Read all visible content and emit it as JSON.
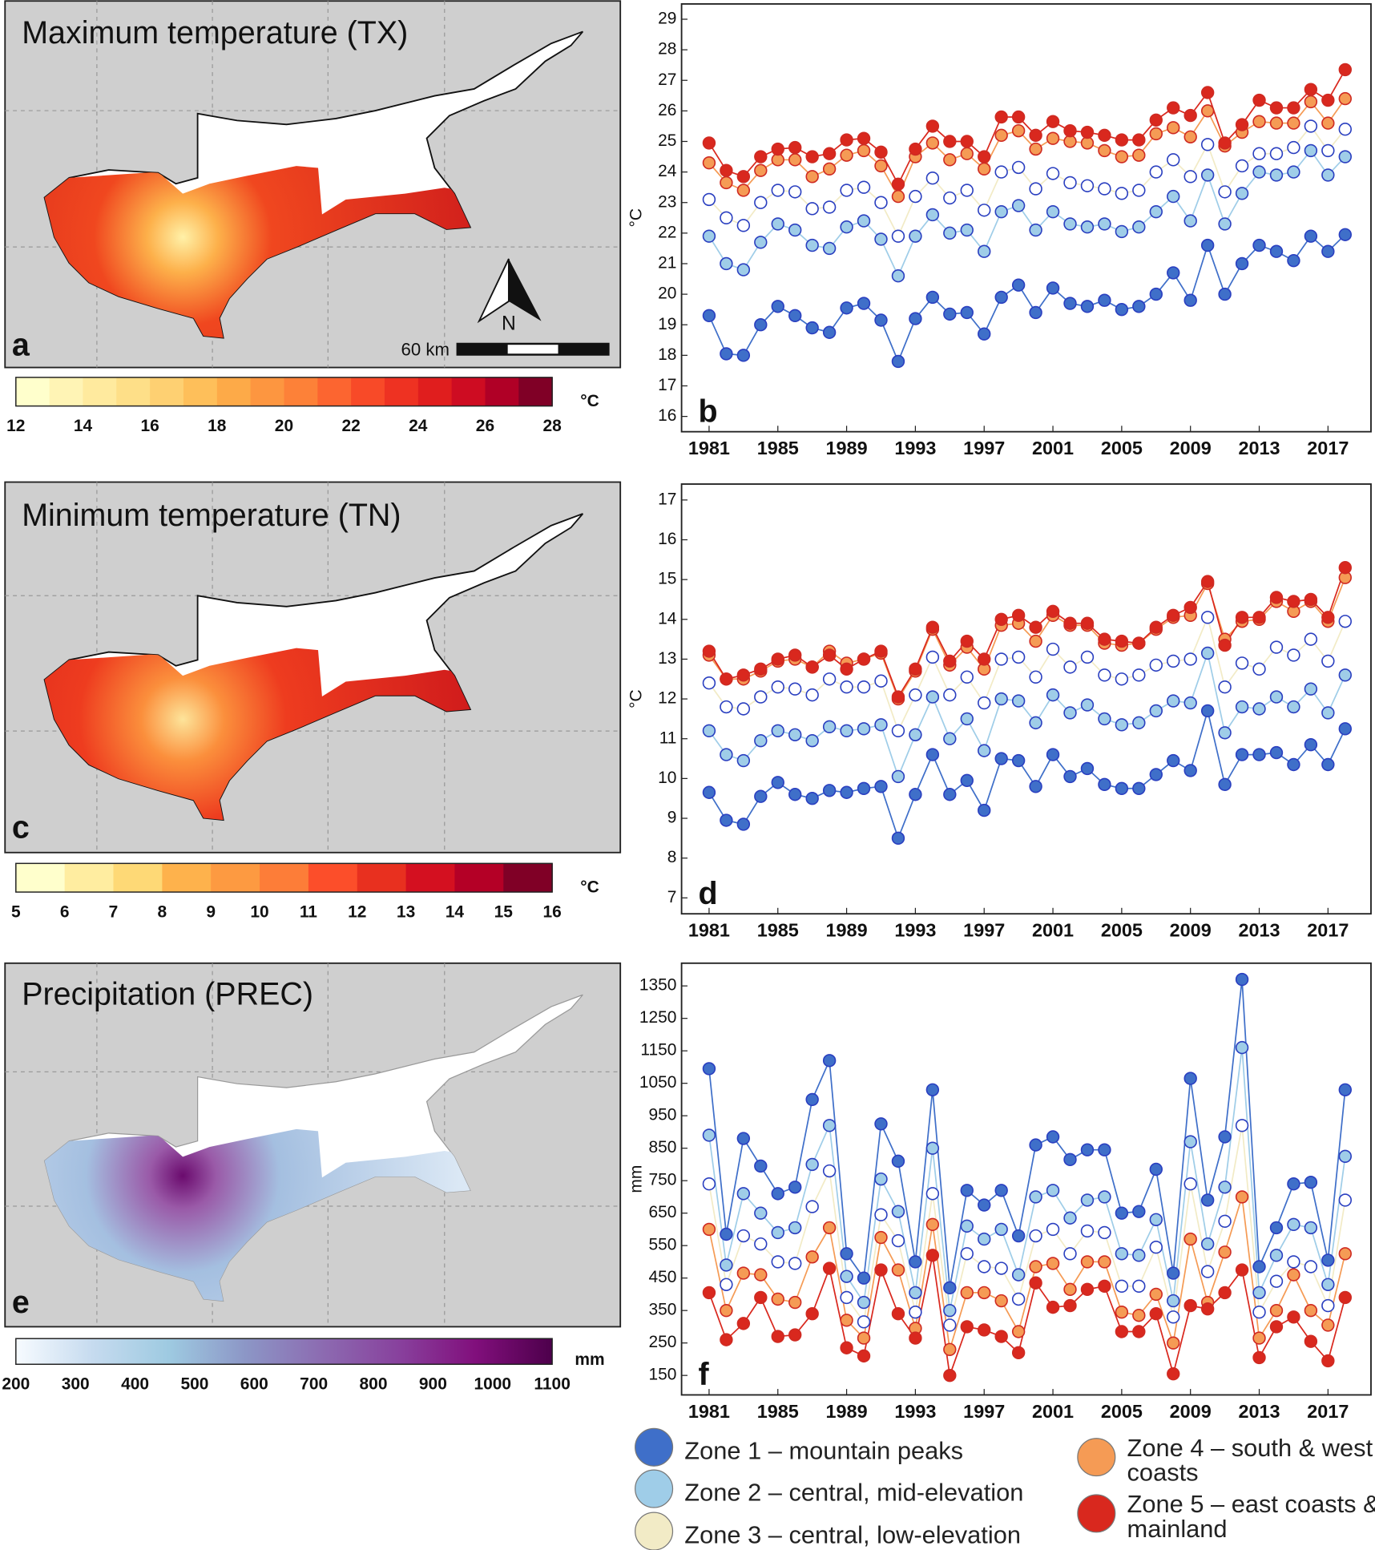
{
  "maps": [
    {
      "title": "Maximum temperature (TX)",
      "label": "a",
      "scale_label": "60 km",
      "north_label": "N"
    },
    {
      "title": "Minimum temperature (TN)",
      "label": "c"
    },
    {
      "title": "Precipitation (PREC)",
      "label": "e"
    }
  ],
  "colorbars": [
    {
      "unit": "°C",
      "ticks": [
        12,
        14,
        16,
        18,
        20,
        22,
        24,
        26,
        28
      ],
      "segmented": true,
      "colors": [
        "#ffffcc",
        "#fff4b5",
        "#ffea9e",
        "#fedf88",
        "#fed072",
        "#febf5a",
        "#fdaa48",
        "#fd9640",
        "#fd8138",
        "#fc6530",
        "#f84a28",
        "#ee3222",
        "#e01e1e",
        "#ce0c22",
        "#b00026",
        "#800026"
      ]
    },
    {
      "unit": "°C",
      "ticks": [
        5,
        6,
        7,
        8,
        9,
        10,
        11,
        12,
        13,
        14,
        15,
        16
      ],
      "segmented": true,
      "colors": [
        "#ffffcc",
        "#ffeda0",
        "#fed976",
        "#feb24c",
        "#fd9a41",
        "#fd7d38",
        "#fc4e2a",
        "#e8301f",
        "#d41020",
        "#b40026",
        "#800026"
      ]
    },
    {
      "unit": "mm",
      "ticks": [
        200,
        300,
        400,
        500,
        600,
        700,
        800,
        900,
        1000,
        1100
      ],
      "segmented": false,
      "colors": [
        "#f7fbff",
        "#c6dbef",
        "#9ecae1",
        "#8c96c6",
        "#8c6bb1",
        "#88419d",
        "#810f7c",
        "#4d004b"
      ]
    }
  ],
  "chart_data": [
    {
      "type": "line",
      "label": "b",
      "ylabel": "°C",
      "x": [
        1981,
        1982,
        1983,
        1984,
        1985,
        1986,
        1987,
        1988,
        1989,
        1990,
        1991,
        1992,
        1993,
        1994,
        1995,
        1996,
        1997,
        1998,
        1999,
        2000,
        2001,
        2002,
        2003,
        2004,
        2005,
        2006,
        2007,
        2008,
        2009,
        2010,
        2011,
        2012,
        2013,
        2014,
        2015,
        2016,
        2017,
        2018
      ],
      "xlim": [
        1979.4,
        2019.5
      ],
      "xticks": [
        1981,
        1985,
        1989,
        1993,
        1997,
        2001,
        2005,
        2009,
        2013,
        2017
      ],
      "ylim": [
        15.5,
        29.5
      ],
      "yticks": [
        16,
        17,
        18,
        19,
        20,
        21,
        22,
        23,
        24,
        25,
        26,
        27,
        28,
        29
      ],
      "series": [
        {
          "name": "Zone 1 – mountain peaks",
          "color": "#3f6fc9",
          "values": [
            19.3,
            18.05,
            18.0,
            19.0,
            19.6,
            19.3,
            18.9,
            18.75,
            19.55,
            19.7,
            19.15,
            17.8,
            19.2,
            19.9,
            19.35,
            19.4,
            18.7,
            19.9,
            20.3,
            19.4,
            20.2,
            19.7,
            19.6,
            19.8,
            19.5,
            19.6,
            20.0,
            20.7,
            19.8,
            21.6,
            20.0,
            21.0,
            21.6,
            21.4,
            21.1,
            21.9,
            21.4,
            21.95
          ]
        },
        {
          "name": "Zone 2 – central, mid-elevation",
          "color": "#9fcde8",
          "values": [
            21.9,
            21.0,
            20.8,
            21.7,
            22.3,
            22.1,
            21.6,
            21.5,
            22.2,
            22.4,
            21.8,
            20.6,
            21.9,
            22.6,
            22.0,
            22.1,
            21.4,
            22.7,
            22.9,
            22.1,
            22.7,
            22.3,
            22.2,
            22.3,
            22.05,
            22.2,
            22.7,
            23.2,
            22.4,
            23.9,
            22.3,
            23.3,
            24.0,
            23.9,
            24.0,
            24.7,
            23.9,
            24.5
          ]
        },
        {
          "name": "Zone 3 – central, low-elevation",
          "color": "#f2ebc6",
          "values": [
            23.1,
            22.5,
            22.25,
            23.0,
            23.4,
            23.35,
            22.8,
            22.85,
            23.4,
            23.5,
            23.0,
            21.9,
            23.2,
            23.8,
            23.15,
            23.4,
            22.75,
            24.0,
            24.15,
            23.45,
            23.95,
            23.65,
            23.55,
            23.45,
            23.3,
            23.4,
            24.0,
            24.4,
            23.85,
            24.9,
            23.35,
            24.2,
            24.6,
            24.6,
            24.8,
            25.5,
            24.7,
            25.4
          ]
        },
        {
          "name": "Zone 4 – south & west coasts",
          "color": "#f59b55",
          "values": [
            24.3,
            23.65,
            23.4,
            24.05,
            24.4,
            24.4,
            23.85,
            24.1,
            24.55,
            24.7,
            24.2,
            23.2,
            24.5,
            24.95,
            24.4,
            24.6,
            24.1,
            25.2,
            25.35,
            24.75,
            25.1,
            25.0,
            24.95,
            24.7,
            24.5,
            24.55,
            25.25,
            25.45,
            25.15,
            26.0,
            24.85,
            25.3,
            25.65,
            25.6,
            25.6,
            26.3,
            25.6,
            26.4
          ]
        },
        {
          "name": "Zone 5 – east coasts & mainland",
          "color": "#d9281e",
          "values": [
            24.95,
            24.05,
            23.85,
            24.5,
            24.75,
            24.8,
            24.5,
            24.6,
            25.05,
            25.1,
            24.65,
            23.6,
            24.75,
            25.5,
            25.0,
            25.0,
            24.5,
            25.8,
            25.8,
            25.2,
            25.65,
            25.35,
            25.3,
            25.2,
            25.05,
            25.05,
            25.7,
            26.1,
            25.85,
            26.6,
            24.95,
            25.55,
            26.35,
            26.1,
            26.1,
            26.7,
            26.35,
            27.35
          ]
        }
      ]
    },
    {
      "type": "line",
      "label": "d",
      "ylabel": "°C",
      "x": [
        1981,
        1982,
        1983,
        1984,
        1985,
        1986,
        1987,
        1988,
        1989,
        1990,
        1991,
        1992,
        1993,
        1994,
        1995,
        1996,
        1997,
        1998,
        1999,
        2000,
        2001,
        2002,
        2003,
        2004,
        2005,
        2006,
        2007,
        2008,
        2009,
        2010,
        2011,
        2012,
        2013,
        2014,
        2015,
        2016,
        2017,
        2018
      ],
      "xlim": [
        1979.4,
        2019.5
      ],
      "xticks": [
        1981,
        1985,
        1989,
        1993,
        1997,
        2001,
        2005,
        2009,
        2013,
        2017
      ],
      "ylim": [
        6.6,
        17.4
      ],
      "yticks": [
        7,
        8,
        9,
        10,
        11,
        12,
        13,
        14,
        15,
        16,
        17
      ],
      "series": [
        {
          "values": [
            9.65,
            8.95,
            8.85,
            9.55,
            9.9,
            9.6,
            9.5,
            9.7,
            9.65,
            9.75,
            9.8,
            8.5,
            9.6,
            10.6,
            9.6,
            9.95,
            9.2,
            10.5,
            10.45,
            9.8,
            10.6,
            10.05,
            10.25,
            9.85,
            9.75,
            9.75,
            10.1,
            10.45,
            10.2,
            11.7,
            9.85,
            10.6,
            10.6,
            10.65,
            10.35,
            10.85,
            10.35,
            11.25
          ]
        },
        {
          "values": [
            11.2,
            10.6,
            10.45,
            10.95,
            11.2,
            11.1,
            10.95,
            11.3,
            11.2,
            11.25,
            11.35,
            10.05,
            11.1,
            12.05,
            11.0,
            11.5,
            10.7,
            12.0,
            11.95,
            11.4,
            12.1,
            11.65,
            11.85,
            11.5,
            11.35,
            11.4,
            11.7,
            11.95,
            11.9,
            13.15,
            11.15,
            11.8,
            11.75,
            12.05,
            11.8,
            12.25,
            11.65,
            12.6
          ]
        },
        {
          "values": [
            12.4,
            11.8,
            11.75,
            12.05,
            12.3,
            12.25,
            12.1,
            12.5,
            12.3,
            12.3,
            12.45,
            11.2,
            12.1,
            13.05,
            12.1,
            12.55,
            11.9,
            13.0,
            13.05,
            12.55,
            13.25,
            12.8,
            13.05,
            12.6,
            12.5,
            12.6,
            12.85,
            12.95,
            13.0,
            14.05,
            12.3,
            12.9,
            12.75,
            13.3,
            13.1,
            13.5,
            12.95,
            13.95
          ]
        },
        {
          "values": [
            13.1,
            12.5,
            12.5,
            12.7,
            12.95,
            13.0,
            12.8,
            13.2,
            12.9,
            13.0,
            13.15,
            12.0,
            12.7,
            13.75,
            12.85,
            13.3,
            12.75,
            13.85,
            13.9,
            13.45,
            14.1,
            13.85,
            13.85,
            13.4,
            13.35,
            13.4,
            13.75,
            14.05,
            14.1,
            14.9,
            13.5,
            13.95,
            14.0,
            14.45,
            14.2,
            14.45,
            13.95,
            15.05
          ]
        },
        {
          "values": [
            13.2,
            12.5,
            12.6,
            12.75,
            13.0,
            13.1,
            12.8,
            13.1,
            12.75,
            13.0,
            13.2,
            12.05,
            12.75,
            13.8,
            12.95,
            13.45,
            13.0,
            14.0,
            14.1,
            13.8,
            14.2,
            13.9,
            13.9,
            13.5,
            13.45,
            13.4,
            13.8,
            14.1,
            14.3,
            14.95,
            13.35,
            14.05,
            14.05,
            14.55,
            14.45,
            14.5,
            14.05,
            15.3
          ]
        }
      ]
    },
    {
      "type": "line",
      "label": "f",
      "ylabel": "mm",
      "x": [
        1981,
        1982,
        1983,
        1984,
        1985,
        1986,
        1987,
        1988,
        1989,
        1990,
        1991,
        1992,
        1993,
        1994,
        1995,
        1996,
        1997,
        1998,
        1999,
        2000,
        2001,
        2002,
        2003,
        2004,
        2005,
        2006,
        2007,
        2008,
        2009,
        2010,
        2011,
        2012,
        2013,
        2014,
        2015,
        2016,
        2017,
        2018
      ],
      "xlim": [
        1979.4,
        2019.5
      ],
      "xticks": [
        1981,
        1985,
        1989,
        1993,
        1997,
        2001,
        2005,
        2009,
        2013,
        2017
      ],
      "ylim": [
        90,
        1420
      ],
      "yticks": [
        150,
        250,
        350,
        450,
        550,
        650,
        750,
        850,
        950,
        1050,
        1150,
        1250,
        1350
      ],
      "series": [
        {
          "values": [
            1095,
            585,
            880,
            795,
            710,
            730,
            1000,
            1120,
            525,
            450,
            925,
            810,
            500,
            1030,
            420,
            720,
            675,
            720,
            580,
            860,
            885,
            815,
            845,
            845,
            650,
            655,
            785,
            465,
            1065,
            690,
            885,
            1370,
            485,
            605,
            740,
            745,
            505,
            1030
          ]
        },
        {
          "values": [
            890,
            490,
            710,
            650,
            590,
            605,
            800,
            920,
            455,
            375,
            755,
            655,
            405,
            850,
            350,
            610,
            570,
            600,
            460,
            700,
            720,
            635,
            690,
            700,
            525,
            520,
            630,
            380,
            870,
            555,
            730,
            1160,
            405,
            520,
            615,
            605,
            430,
            825
          ]
        },
        {
          "values": [
            740,
            430,
            580,
            555,
            500,
            495,
            670,
            780,
            390,
            315,
            645,
            565,
            345,
            710,
            305,
            525,
            485,
            480,
            385,
            580,
            600,
            525,
            595,
            590,
            425,
            425,
            545,
            330,
            740,
            470,
            625,
            920,
            345,
            440,
            500,
            485,
            365,
            690
          ]
        },
        {
          "values": [
            600,
            350,
            465,
            460,
            385,
            375,
            515,
            605,
            320,
            265,
            575,
            475,
            295,
            615,
            230,
            405,
            405,
            380,
            285,
            485,
            495,
            415,
            500,
            500,
            345,
            335,
            400,
            250,
            570,
            375,
            530,
            700,
            265,
            350,
            460,
            350,
            305,
            525
          ]
        },
        {
          "values": [
            405,
            260,
            310,
            390,
            270,
            275,
            340,
            480,
            235,
            210,
            475,
            340,
            265,
            520,
            150,
            300,
            290,
            270,
            220,
            435,
            360,
            365,
            415,
            425,
            285,
            285,
            340,
            155,
            365,
            355,
            405,
            475,
            205,
            300,
            330,
            255,
            195,
            390
          ]
        }
      ]
    }
  ]
}
